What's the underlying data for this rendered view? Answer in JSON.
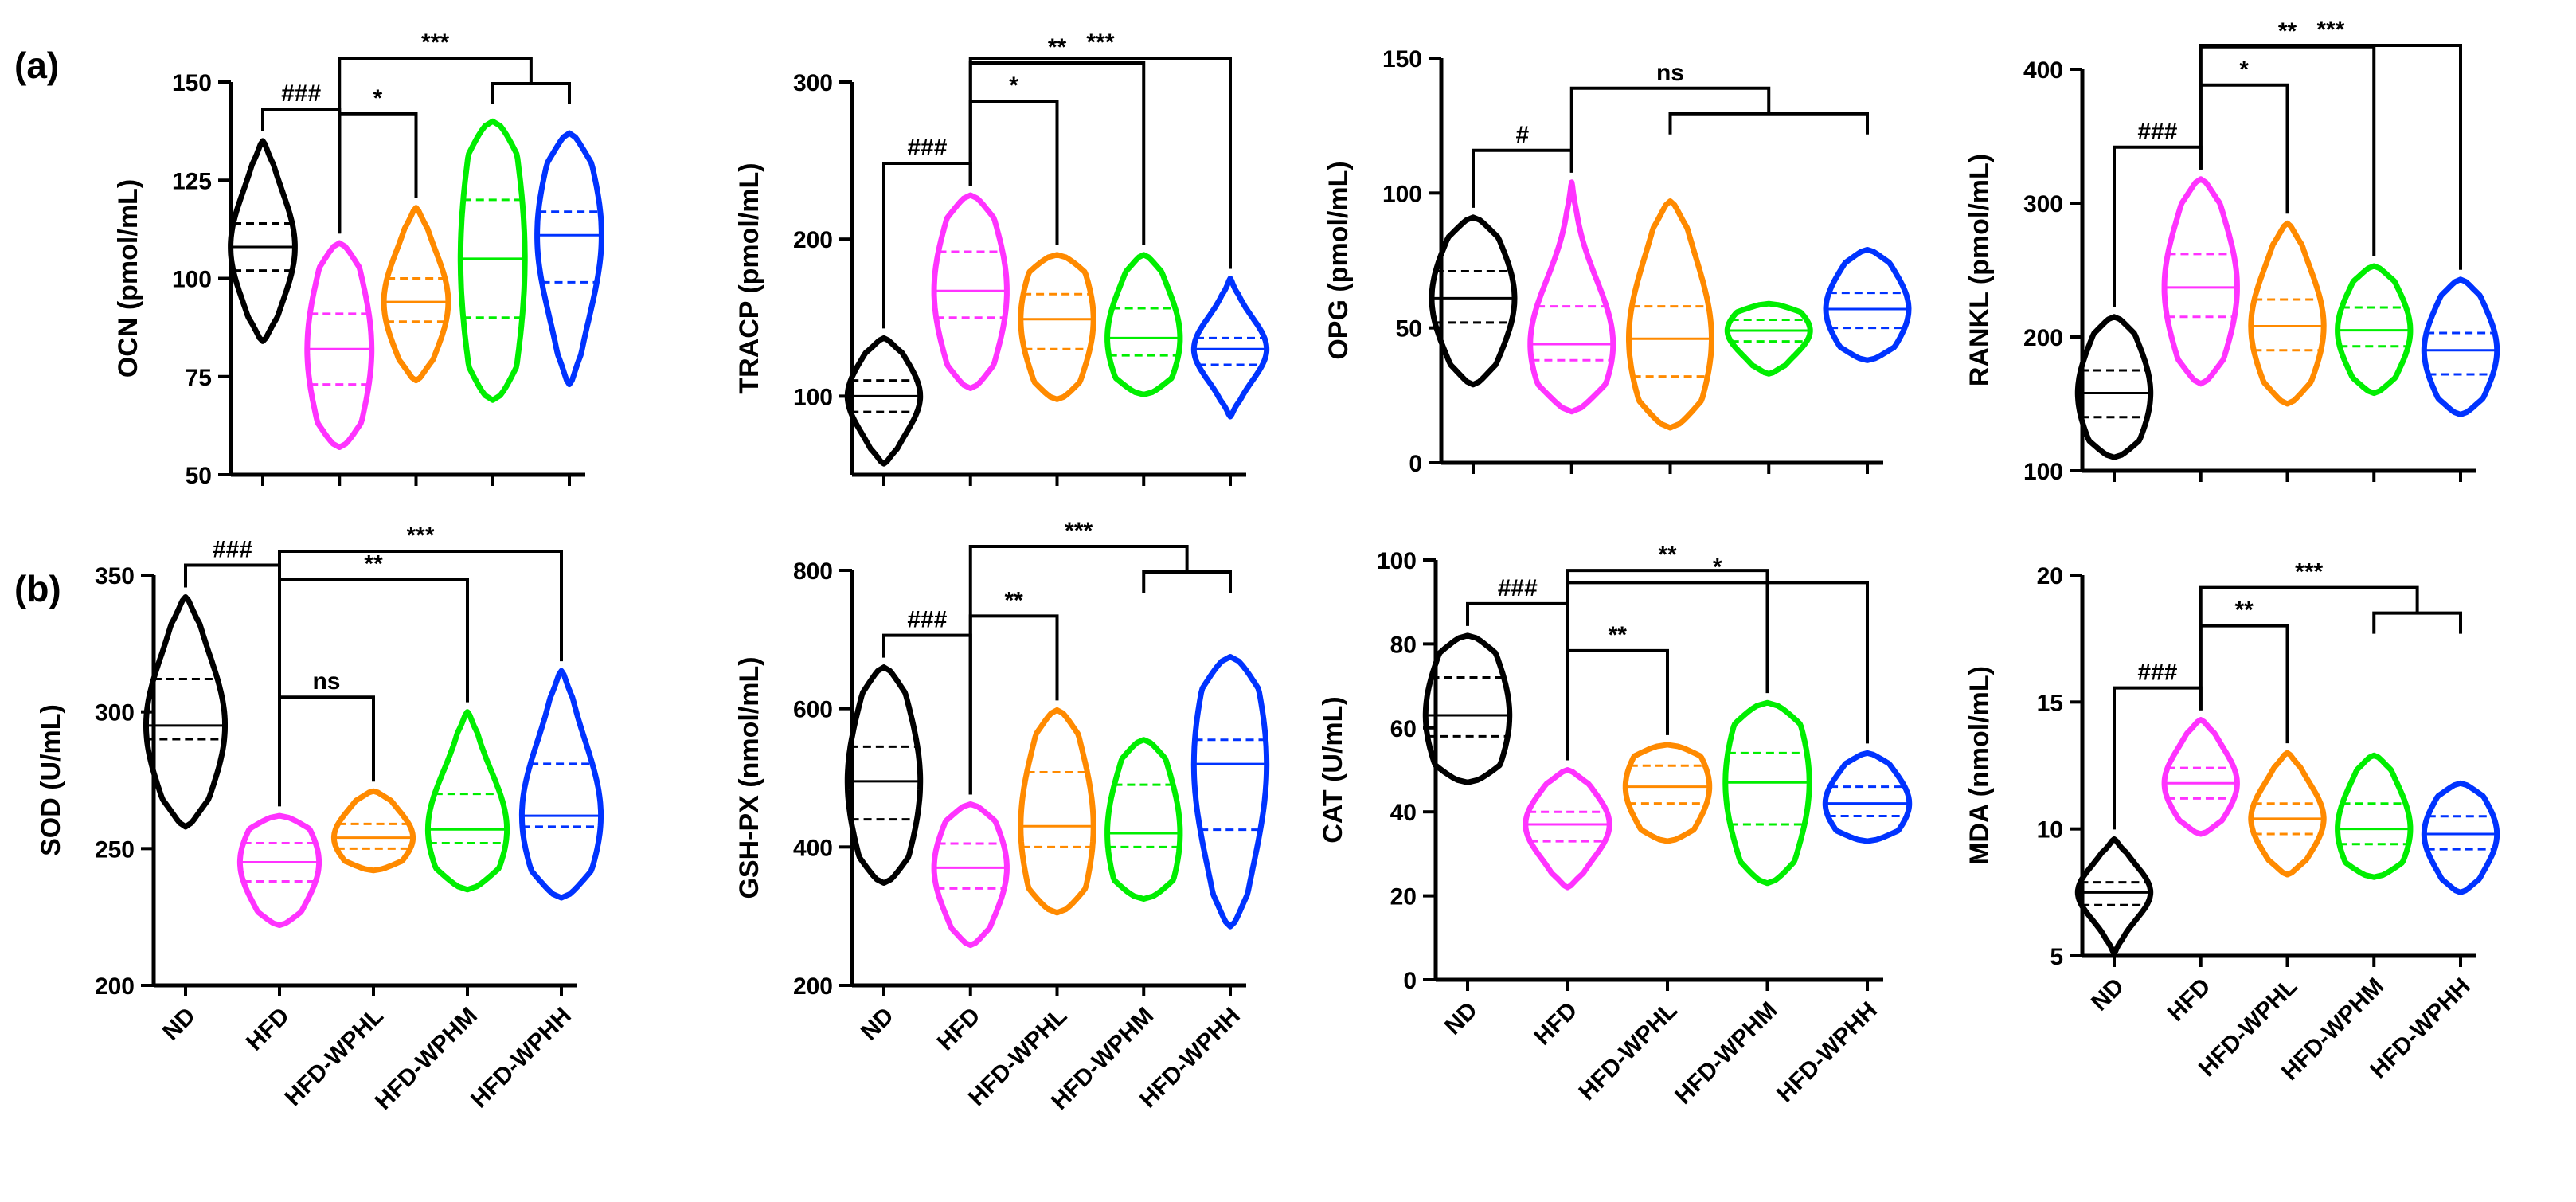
{
  "figure": {
    "panel_labels": [
      "(a)",
      "(b)"
    ],
    "group_colors": {
      "ND": "#000000",
      "HFD": "#ff33ff",
      "HFD-WPHL": "#ff8a00",
      "HFD-WPHM": "#00ee00",
      "HFD-WPHH": "#0033ff"
    }
  },
  "chart_data": [
    {
      "type": "violin",
      "ylabel": "OCN (pmol/mL)",
      "ylim": [
        50,
        150
      ],
      "yticks": [
        50,
        75,
        100,
        125,
        150
      ],
      "categories": [
        "ND",
        "HFD",
        "HFD-WPHL",
        "HFD-WPHM",
        "HFD-WPHH"
      ],
      "groups": [
        {
          "name": "ND",
          "min": 84,
          "max": 135,
          "q1": 102,
          "median": 108,
          "q3": 114
        },
        {
          "name": "HFD",
          "min": 57,
          "max": 109,
          "q1": 73,
          "median": 82,
          "q3": 91
        },
        {
          "name": "HFD-WPHL",
          "min": 74,
          "max": 118,
          "q1": 89,
          "median": 94,
          "q3": 100
        },
        {
          "name": "HFD-WPHM",
          "min": 69,
          "max": 140,
          "q1": 90,
          "median": 105,
          "q3": 120
        },
        {
          "name": "HFD-WPHH",
          "min": 73,
          "max": 137,
          "q1": 99,
          "median": 111,
          "q3": 117
        }
      ],
      "comparisons": [
        {
          "label": "###",
          "from": "ND",
          "to": "HFD"
        },
        {
          "label": "*",
          "from": "HFD",
          "to": "HFD-WPHL"
        },
        {
          "label": "***",
          "from": "HFD",
          "to": [
            "HFD-WPHM",
            "HFD-WPHH"
          ]
        }
      ]
    },
    {
      "type": "violin",
      "ylabel": "TRACP (pmol/mL)",
      "ylim": [
        50,
        300
      ],
      "yticks": [
        100,
        200,
        300
      ],
      "categories": [
        "ND",
        "HFD",
        "HFD-WPHL",
        "HFD-WPHM",
        "HFD-WPHH"
      ],
      "groups": [
        {
          "name": "ND",
          "min": 57,
          "max": 137,
          "q1": 90,
          "median": 100,
          "q3": 110
        },
        {
          "name": "HFD",
          "min": 105,
          "max": 228,
          "q1": 150,
          "median": 167,
          "q3": 192
        },
        {
          "name": "HFD-WPHL",
          "min": 98,
          "max": 190,
          "q1": 130,
          "median": 149,
          "q3": 165
        },
        {
          "name": "HFD-WPHM",
          "min": 101,
          "max": 190,
          "q1": 126,
          "median": 137,
          "q3": 156
        },
        {
          "name": "HFD-WPHH",
          "min": 87,
          "max": 175,
          "q1": 120,
          "median": 130,
          "q3": 137
        }
      ],
      "comparisons": [
        {
          "label": "###",
          "from": "ND",
          "to": "HFD"
        },
        {
          "label": "*",
          "from": "HFD",
          "to": "HFD-WPHL"
        },
        {
          "label": "**",
          "from": "HFD",
          "to": "HFD-WPHM"
        },
        {
          "label": "***",
          "from": "HFD",
          "to": "HFD-WPHH"
        }
      ]
    },
    {
      "type": "violin",
      "ylabel": "OPG (pmol/mL)",
      "ylim": [
        0,
        150
      ],
      "yticks": [
        0,
        50,
        100,
        150
      ],
      "categories": [
        "ND",
        "HFD",
        "HFD-WPHL",
        "HFD-WPHM",
        "HFD-WPHH"
      ],
      "groups": [
        {
          "name": "ND",
          "min": 29,
          "max": 91,
          "q1": 52,
          "median": 61,
          "q3": 71
        },
        {
          "name": "HFD",
          "min": 19,
          "max": 104,
          "q1": 38,
          "median": 44,
          "q3": 58
        },
        {
          "name": "HFD-WPHL",
          "min": 13,
          "max": 97,
          "q1": 32,
          "median": 46,
          "q3": 58
        },
        {
          "name": "HFD-WPHM",
          "min": 33,
          "max": 59,
          "q1": 45,
          "median": 49,
          "q3": 53
        },
        {
          "name": "HFD-WPHH",
          "min": 38,
          "max": 79,
          "q1": 50,
          "median": 57,
          "q3": 63
        }
      ],
      "comparisons": [
        {
          "label": "#",
          "from": "ND",
          "to": "HFD"
        },
        {
          "label": "ns",
          "from": "HFD",
          "to": [
            "HFD-WPHL",
            "HFD-WPHM",
            "HFD-WPHH"
          ]
        }
      ]
    },
    {
      "type": "violin",
      "ylabel": "RANKL (pmol/mL)",
      "ylim": [
        100,
        400
      ],
      "yticks": [
        100,
        200,
        300,
        400
      ],
      "categories": [
        "ND",
        "HFD",
        "HFD-WPHL",
        "HFD-WPHM",
        "HFD-WPHH"
      ],
      "groups": [
        {
          "name": "ND",
          "min": 110,
          "max": 215,
          "q1": 140,
          "median": 158,
          "q3": 175
        },
        {
          "name": "HFD",
          "min": 165,
          "max": 318,
          "q1": 215,
          "median": 237,
          "q3": 262
        },
        {
          "name": "HFD-WPHL",
          "min": 150,
          "max": 285,
          "q1": 190,
          "median": 208,
          "q3": 228
        },
        {
          "name": "HFD-WPHM",
          "min": 158,
          "max": 253,
          "q1": 193,
          "median": 205,
          "q3": 222
        },
        {
          "name": "HFD-WPHH",
          "min": 142,
          "max": 243,
          "q1": 172,
          "median": 190,
          "q3": 203
        }
      ],
      "comparisons": [
        {
          "label": "###",
          "from": "ND",
          "to": "HFD"
        },
        {
          "label": "*",
          "from": "HFD",
          "to": "HFD-WPHL"
        },
        {
          "label": "**",
          "from": "HFD",
          "to": "HFD-WPHM"
        },
        {
          "label": "***",
          "from": "HFD",
          "to": "HFD-WPHH"
        }
      ]
    },
    {
      "type": "violin",
      "ylabel": "SOD (U/mL)",
      "ylim": [
        200,
        350
      ],
      "yticks": [
        200,
        250,
        300,
        350
      ],
      "categories": [
        "ND",
        "HFD",
        "HFD-WPHL",
        "HFD-WPHM",
        "HFD-WPHH"
      ],
      "groups": [
        {
          "name": "ND",
          "min": 258,
          "max": 342,
          "q1": 290,
          "median": 295,
          "q3": 312
        },
        {
          "name": "HFD",
          "min": 222,
          "max": 262,
          "q1": 238,
          "median": 245,
          "q3": 252
        },
        {
          "name": "HFD-WPHL",
          "min": 242,
          "max": 271,
          "q1": 250,
          "median": 254,
          "q3": 259
        },
        {
          "name": "HFD-WPHM",
          "min": 235,
          "max": 300,
          "q1": 252,
          "median": 257,
          "q3": 270
        },
        {
          "name": "HFD-WPHH",
          "min": 232,
          "max": 315,
          "q1": 258,
          "median": 262,
          "q3": 281
        }
      ],
      "comparisons": [
        {
          "label": "###",
          "from": "ND",
          "to": "HFD"
        },
        {
          "label": "ns",
          "from": "HFD",
          "to": "HFD-WPHL"
        },
        {
          "label": "**",
          "from": "HFD",
          "to": "HFD-WPHM"
        },
        {
          "label": "***",
          "from": "HFD",
          "to": "HFD-WPHH"
        }
      ]
    },
    {
      "type": "violin",
      "ylabel": "GSH-PX (nmol/mL)",
      "ylim": [
        200,
        800
      ],
      "yticks": [
        200,
        400,
        600,
        800
      ],
      "categories": [
        "ND",
        "HFD",
        "HFD-WPHL",
        "HFD-WPHM",
        "HFD-WPHH"
      ],
      "groups": [
        {
          "name": "ND",
          "min": 348,
          "max": 660,
          "q1": 440,
          "median": 495,
          "q3": 545
        },
        {
          "name": "HFD",
          "min": 258,
          "max": 462,
          "q1": 340,
          "median": 370,
          "q3": 405
        },
        {
          "name": "HFD-WPHL",
          "min": 305,
          "max": 598,
          "q1": 400,
          "median": 430,
          "q3": 508
        },
        {
          "name": "HFD-WPHM",
          "min": 325,
          "max": 555,
          "q1": 400,
          "median": 420,
          "q3": 490
        },
        {
          "name": "HFD-WPHH",
          "min": 285,
          "max": 675,
          "q1": 425,
          "median": 520,
          "q3": 555
        }
      ],
      "comparisons": [
        {
          "label": "###",
          "from": "ND",
          "to": "HFD"
        },
        {
          "label": "**",
          "from": "HFD",
          "to": "HFD-WPHL"
        },
        {
          "label": "***",
          "from": "HFD",
          "to": [
            "HFD-WPHM",
            "HFD-WPHH"
          ]
        }
      ]
    },
    {
      "type": "violin",
      "ylabel": "CAT (U/mL)",
      "ylim": [
        0,
        100
      ],
      "yticks": [
        0,
        20,
        40,
        60,
        80,
        100
      ],
      "categories": [
        "ND",
        "HFD",
        "HFD-WPHL",
        "HFD-WPHM",
        "HFD-WPHH"
      ],
      "groups": [
        {
          "name": "ND",
          "min": 47,
          "max": 82,
          "q1": 58,
          "median": 63,
          "q3": 72
        },
        {
          "name": "HFD",
          "min": 22,
          "max": 50,
          "q1": 33,
          "median": 37,
          "q3": 40
        },
        {
          "name": "HFD-WPHL",
          "min": 33,
          "max": 56,
          "q1": 42,
          "median": 46,
          "q3": 51
        },
        {
          "name": "HFD-WPHM",
          "min": 23,
          "max": 66,
          "q1": 37,
          "median": 47,
          "q3": 54
        },
        {
          "name": "HFD-WPHH",
          "min": 33,
          "max": 54,
          "q1": 39,
          "median": 42,
          "q3": 46
        }
      ],
      "comparisons": [
        {
          "label": "###",
          "from": "ND",
          "to": "HFD"
        },
        {
          "label": "**",
          "from": "HFD",
          "to": "HFD-WPHL"
        },
        {
          "label": "**",
          "from": "HFD",
          "to": "HFD-WPHM"
        },
        {
          "label": "*",
          "from": "HFD",
          "to": "HFD-WPHH"
        }
      ]
    },
    {
      "type": "violin",
      "ylabel": "MDA (nmol/mL)",
      "ylim": [
        5,
        20
      ],
      "yticks": [
        5,
        10,
        15,
        20
      ],
      "categories": [
        "ND",
        "HFD",
        "HFD-WPHL",
        "HFD-WPHM",
        "HFD-WPHH"
      ],
      "groups": [
        {
          "name": "ND",
          "min": 5.1,
          "max": 9.6,
          "q1": 7.0,
          "median": 7.5,
          "q3": 7.9
        },
        {
          "name": "HFD",
          "min": 9.8,
          "max": 14.3,
          "q1": 11.2,
          "median": 11.8,
          "q3": 12.4
        },
        {
          "name": "HFD-WPHL",
          "min": 8.2,
          "max": 13.0,
          "q1": 9.8,
          "median": 10.4,
          "q3": 11.0
        },
        {
          "name": "HFD-WPHM",
          "min": 8.1,
          "max": 12.9,
          "q1": 9.4,
          "median": 10.0,
          "q3": 11.0
        },
        {
          "name": "HFD-WPHH",
          "min": 7.5,
          "max": 11.8,
          "q1": 9.2,
          "median": 9.8,
          "q3": 10.5
        }
      ],
      "comparisons": [
        {
          "label": "###",
          "from": "ND",
          "to": "HFD"
        },
        {
          "label": "**",
          "from": "HFD",
          "to": "HFD-WPHL"
        },
        {
          "label": "***",
          "from": "HFD",
          "to": [
            "HFD-WPHM",
            "HFD-WPHH"
          ]
        }
      ]
    }
  ]
}
